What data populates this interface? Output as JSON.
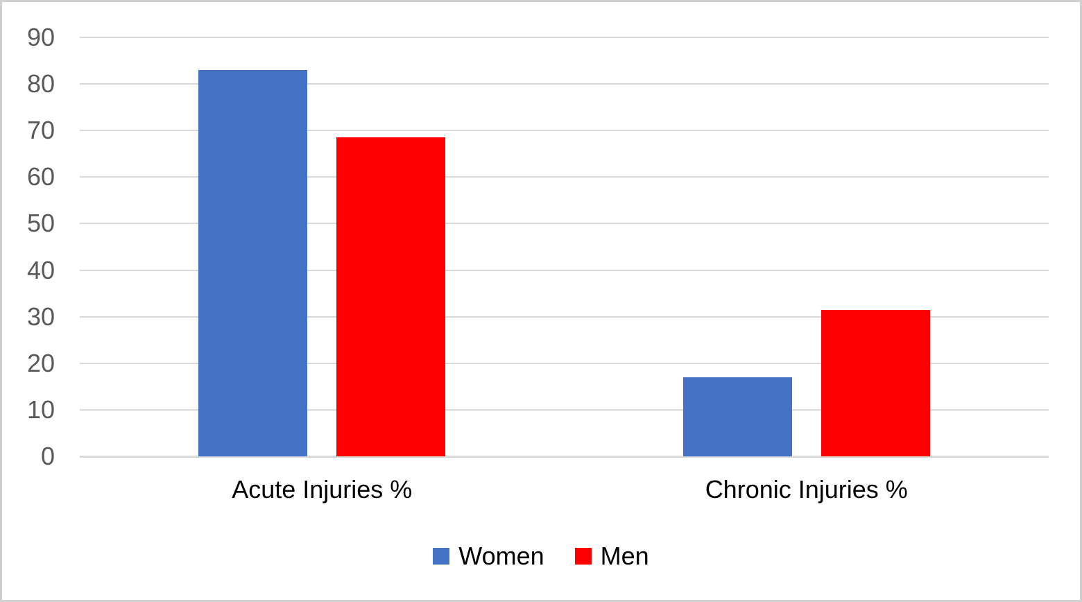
{
  "chart_data": {
    "type": "bar",
    "title": "",
    "categories": [
      "Acute Injuries %",
      "Chronic Injuries %"
    ],
    "series": [
      {
        "name": "Women",
        "color": "#4472C4",
        "values": [
          83,
          17
        ]
      },
      {
        "name": "Men",
        "color": "#FF0000",
        "values": [
          68.5,
          31.5
        ]
      }
    ],
    "ylim": [
      0,
      90
    ],
    "yticks": [
      0,
      10,
      20,
      30,
      40,
      50,
      60,
      70,
      80,
      90
    ],
    "grid": true,
    "legend_position": "bottom"
  },
  "style": {
    "grid_color": "#D9D9D9",
    "axis_tick_color": "#595959",
    "category_label_color": "#000000",
    "legend_label_color": "#000000",
    "frame_border_color": "#D0D0D0",
    "background": "#FFFFFF"
  }
}
